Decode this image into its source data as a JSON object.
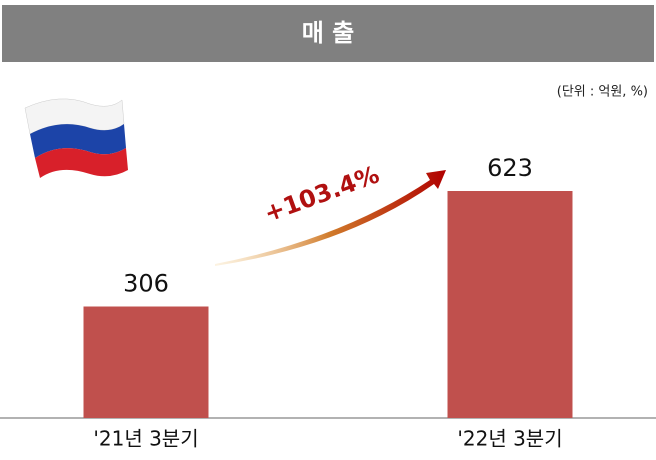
{
  "chart_data": {
    "type": "bar",
    "title": "매 출",
    "subtitle": "(단위 : 억원, %)",
    "categories": [
      "'21년 3분기",
      "'22년 3분기"
    ],
    "values": [
      306,
      623
    ],
    "color": "#c0504d",
    "annotation": "+103.4%"
  }
}
